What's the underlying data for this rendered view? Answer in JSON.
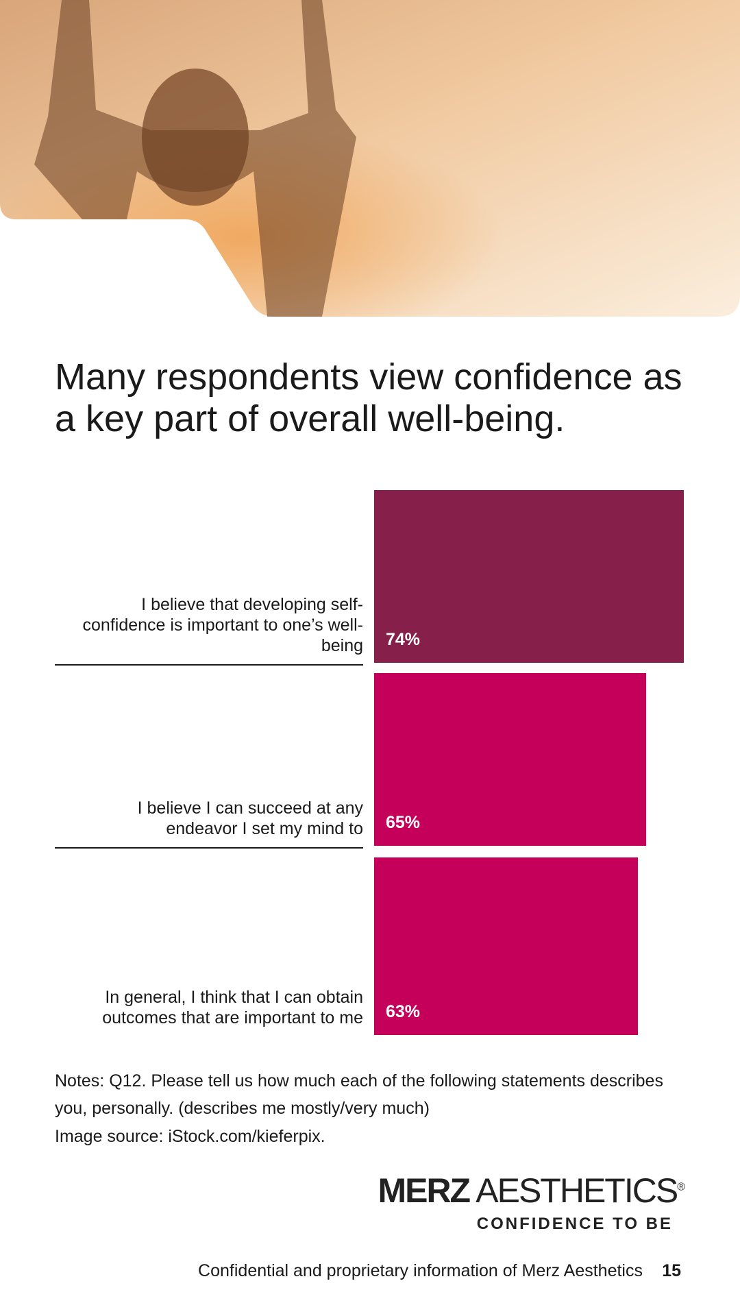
{
  "chart_data": {
    "type": "hbar",
    "title": "Many respondents view confidence as a key part of overall well-being.",
    "categories": [
      "I believe that developing self-confidence is important to one’s well-being",
      "I believe I can succeed at any endeavor I set my mind to",
      "In general, I think that I can obtain outcomes that are important to me"
    ],
    "values": [
      74,
      65,
      63
    ],
    "value_labels": [
      "74%",
      "65%",
      "63%"
    ],
    "colors": [
      "#861f49",
      "#c4005a",
      "#c4005a"
    ],
    "xlim": [
      0,
      100
    ]
  },
  "notes": [
    "Notes: Q12. Please tell us how much each of the following statements describes you, personally. (describes me mostly/very much)",
    "Image source: iStock.com/kieferpix."
  ],
  "logo": {
    "brand": "MERZ",
    "name": "AESTHETICS",
    "mark": "®",
    "tagline": "CONFIDENCE TO BE"
  },
  "footer": {
    "text": "Confidential and proprietary information of Merz Aesthetics",
    "page": "15"
  }
}
